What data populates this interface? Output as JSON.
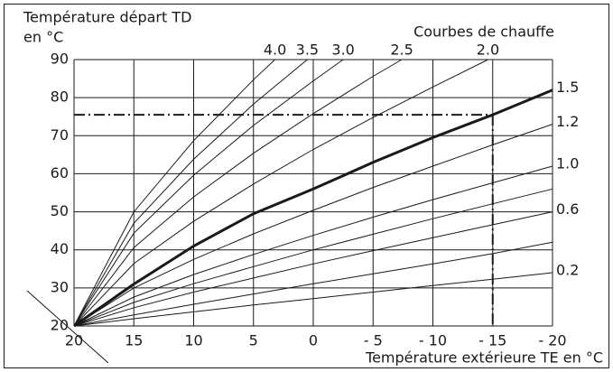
{
  "chart_data": {
    "type": "line",
    "y_title": [
      "Température départ TD",
      "en °C"
    ],
    "curves_title": "Courbes de chauffe",
    "x_title": "Température extérieure TE en °C",
    "xlim": [
      20,
      -20
    ],
    "ylim": [
      20,
      90
    ],
    "xticks": [
      20,
      15,
      10,
      5,
      0,
      {
        "value": -5,
        "label": "- 5"
      },
      {
        "value": -10,
        "label": "- 10"
      },
      {
        "value": -15,
        "label": "- 15"
      },
      {
        "value": -20,
        "label": "- 20"
      }
    ],
    "yticks": [
      20,
      30,
      40,
      50,
      60,
      70,
      80,
      90
    ],
    "grid": true,
    "color": "#1a1a1a",
    "series": [
      {
        "name": "4.0",
        "x": [
          20,
          15,
          10,
          5,
          3.2
        ],
        "values": [
          20,
          50.0,
          68.7,
          84.7,
          90
        ]
      },
      {
        "name": "3.5",
        "x": [
          20,
          15,
          10,
          5,
          0.5
        ],
        "values": [
          20,
          47.0,
          63.8,
          78.3,
          90
        ]
      },
      {
        "name": "3.0",
        "x": [
          20,
          15,
          10,
          5,
          0,
          -2.5
        ],
        "values": [
          20,
          44.4,
          59.6,
          72.7,
          84.4,
          90
        ]
      },
      {
        "name": "2.5",
        "x": [
          20,
          15,
          10,
          5,
          0,
          -5,
          -7.4
        ],
        "values": [
          20,
          40.6,
          53.9,
          65.4,
          75.8,
          85.6,
          90
        ]
      },
      {
        "name": "2.0",
        "x": [
          20,
          15,
          10,
          5,
          0,
          -5,
          -10,
          -14.6
        ],
        "values": [
          20,
          36.4,
          47.5,
          57.3,
          66.4,
          74.8,
          82.8,
          90
        ]
      },
      {
        "name": "1.5",
        "highlight": true,
        "x": [
          20,
          15,
          10,
          5,
          0,
          -5,
          -10,
          -15,
          -20
        ],
        "values": [
          20,
          31,
          41,
          49.5,
          56,
          63,
          69.5,
          75.5,
          82
        ]
      },
      {
        "name": "1.2",
        "x": [
          20,
          15,
          10,
          5,
          0,
          -5,
          -10,
          -15,
          -20
        ],
        "values": [
          20,
          30.0,
          37.5,
          44.2,
          50.4,
          56.4,
          62.0,
          67.6,
          73.0
        ]
      },
      {
        "name": "1.0",
        "x": [
          20,
          15,
          10,
          5,
          0,
          -5,
          -10,
          -15,
          -20
        ],
        "values": [
          20,
          27.6,
          33.5,
          38.8,
          43.8,
          48.6,
          53.2,
          57.6,
          62.0
        ]
      },
      {
        "x": [
          20,
          15,
          10,
          5,
          0,
          -5,
          -10,
          -15,
          -20
        ],
        "values": [
          20,
          26.2,
          31.1,
          35.6,
          40.0,
          44.1,
          48.2,
          52.1,
          56.0
        ]
      },
      {
        "name": "0.6",
        "x": [
          20,
          15,
          10,
          5,
          0,
          -5,
          -10,
          -15,
          -20
        ],
        "values": [
          20,
          24.8,
          28.9,
          32.6,
          36.3,
          39.8,
          43.2,
          46.6,
          50.0
        ]
      },
      {
        "x": [
          20,
          15,
          10,
          5,
          0,
          -5,
          -10,
          -15,
          -20
        ],
        "values": [
          20,
          22.9,
          25.7,
          28.4,
          31.1,
          33.7,
          36.3,
          39.0,
          42.0
        ]
      },
      {
        "name": "0.2",
        "x": [
          20,
          15,
          10,
          5,
          0,
          -5,
          -10,
          -15,
          -20
        ],
        "values": [
          20,
          21.9,
          23.7,
          25.5,
          27.2,
          28.9,
          30.6,
          32.3,
          34.0
        ]
      }
    ],
    "reference": {
      "x": -15,
      "y": 75.5
    }
  }
}
